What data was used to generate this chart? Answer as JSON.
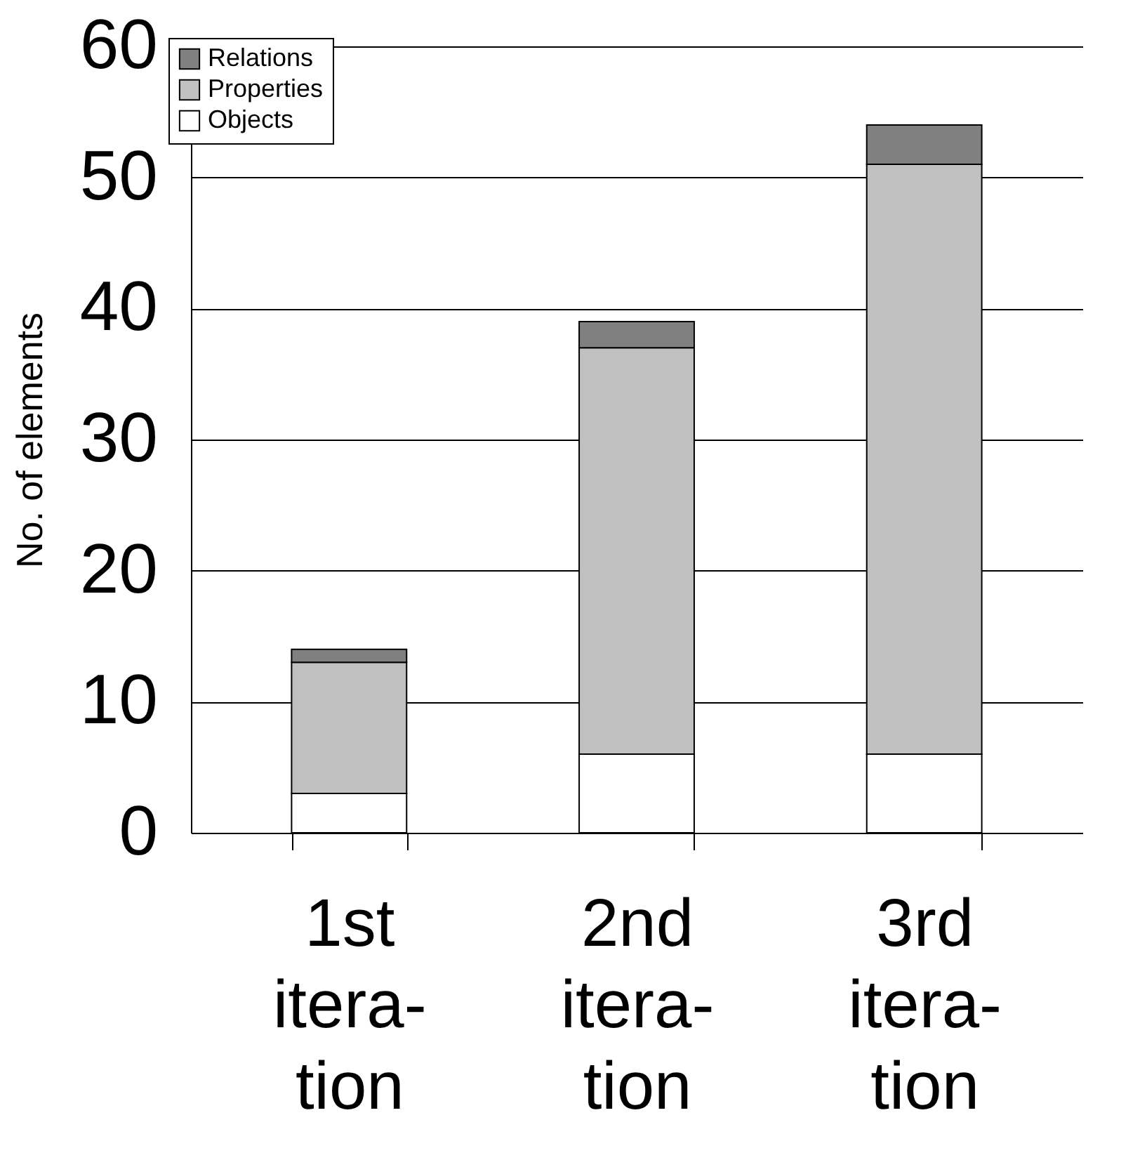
{
  "chart_data": {
    "type": "bar",
    "stacked": true,
    "ylabel": "No. of elements",
    "categories": [
      "1st\nitera-\ntion",
      "2nd\nitera-\ntion",
      "3rd\nitera-\ntion"
    ],
    "series": [
      {
        "name": "Objects",
        "color": "#ffffff",
        "values": [
          3,
          6,
          6
        ]
      },
      {
        "name": "Properties",
        "color": "#c0c0c0",
        "values": [
          10,
          31,
          45
        ]
      },
      {
        "name": "Relations",
        "color": "#808080",
        "values": [
          1,
          2,
          3
        ]
      }
    ],
    "ylim": [
      0,
      60
    ],
    "yticks": [
      0,
      10,
      20,
      30,
      40,
      50,
      60
    ],
    "grid": "y",
    "legend": "top left"
  }
}
